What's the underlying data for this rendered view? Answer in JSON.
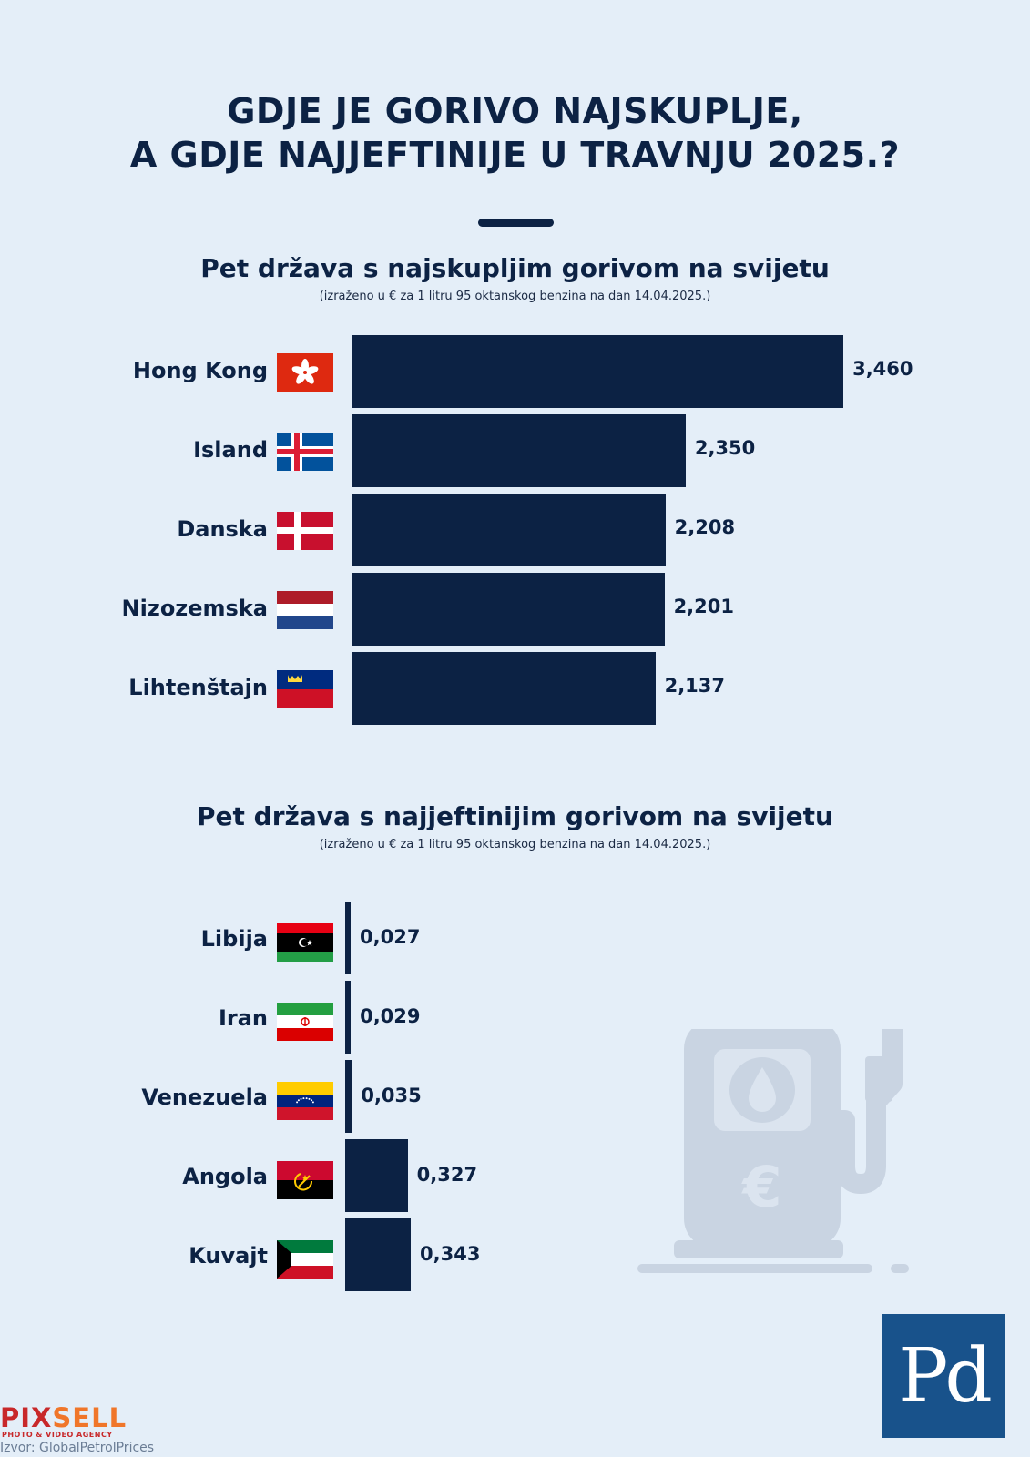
{
  "title_line1": "GDJE JE GORIVO NAJSKUPLJE,",
  "title_line2": "A GDJE NAJJEFTINIJE U TRAVNJU 2025.?",
  "chart_data": [
    {
      "type": "bar",
      "orientation": "horizontal",
      "title": "Pet država s najskupljim gorivom na svijetu",
      "subtitle": "(izraženo u € za 1 litru 95 oktanskog benzina na dan 14.04.2025.)",
      "categories": [
        "Hong Kong",
        "Island",
        "Danska",
        "Nizozemska",
        "Lihtenštajn"
      ],
      "values": [
        3.46,
        2.35,
        2.208,
        2.201,
        2.137
      ],
      "value_labels": [
        "3,460",
        "2,350",
        "2,208",
        "2,201",
        "2,137"
      ],
      "flags": [
        "hong-kong-flag-icon",
        "iceland-flag-icon",
        "denmark-flag-icon",
        "netherlands-flag-icon",
        "liechtenstein-flag-icon"
      ],
      "bar_color": "#0c2244",
      "axis": false,
      "grid": false
    },
    {
      "type": "bar",
      "orientation": "horizontal",
      "title": "Pet država s najjeftinijim gorivom na svijetu",
      "subtitle": "(izraženo u € za 1 litru 95 oktanskog benzina na dan 14.04.2025.)",
      "categories": [
        "Libija",
        "Iran",
        "Venezuela",
        "Angola",
        "Kuvajt"
      ],
      "values": [
        0.027,
        0.029,
        0.035,
        0.327,
        0.343
      ],
      "value_labels": [
        "0,027",
        "0,029",
        "0,035",
        "0,327",
        "0,343"
      ],
      "flags": [
        "libya-flag-icon",
        "iran-flag-icon",
        "venezuela-flag-icon",
        "angola-flag-icon",
        "kuwait-flag-icon"
      ],
      "bar_color": "#0c2244",
      "axis": false,
      "grid": false
    }
  ],
  "logo_text": "Pd",
  "pixsell": {
    "part1": "PIX",
    "part2": "SELL",
    "tagline": "PHOTO & VIDEO AGENCY"
  },
  "source": "Izvor: GlobalPetrolPrices",
  "decor": {
    "fuel_pump": "fuel-pump-icon"
  }
}
